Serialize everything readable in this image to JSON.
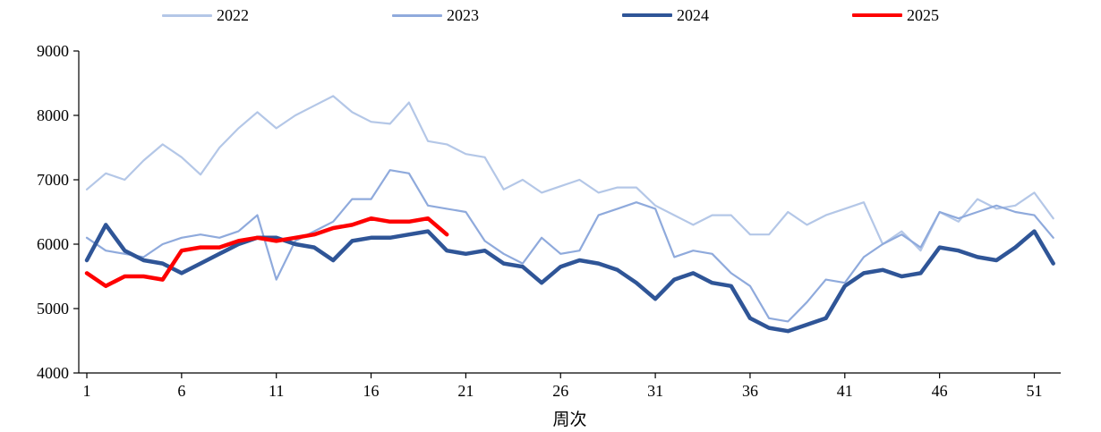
{
  "chart_data": {
    "type": "line",
    "title": "",
    "xlabel": "周次",
    "legend_position": "top",
    "grid": false,
    "xlim": [
      1,
      52
    ],
    "ylim": [
      4000,
      9000
    ],
    "x_ticks": [
      1,
      6,
      11,
      16,
      21,
      26,
      31,
      36,
      41,
      46,
      51
    ],
    "y_ticks": [
      4000,
      5000,
      6000,
      7000,
      8000,
      9000
    ],
    "axis_color": "#000000",
    "series": [
      {
        "name": "2022",
        "color": "#b4c7e7",
        "width": 2.2,
        "values": [
          6850,
          7100,
          7000,
          7300,
          7550,
          7350,
          7080,
          7500,
          7800,
          8050,
          7800,
          8000,
          8150,
          8300,
          8050,
          7900,
          7870,
          8200,
          7600,
          7550,
          7400,
          7350,
          6850,
          7000,
          6800,
          6900,
          7000,
          6800,
          6880,
          6880,
          6600,
          6450,
          6300,
          6450,
          6450,
          6150,
          6150,
          6500,
          6300,
          6450,
          6550,
          6650,
          6000,
          6200,
          5900,
          6500,
          6350,
          6700,
          6550,
          6600,
          6800,
          6400
        ]
      },
      {
        "name": "2023",
        "color": "#8faadc",
        "width": 2.2,
        "values": [
          6100,
          5900,
          5850,
          5800,
          6000,
          6100,
          6150,
          6100,
          6200,
          6450,
          5450,
          6050,
          6200,
          6350,
          6700,
          6700,
          7150,
          7100,
          6600,
          6550,
          6500,
          6050,
          5850,
          5700,
          6100,
          5850,
          5900,
          6450,
          6550,
          6650,
          6550,
          5800,
          5900,
          5850,
          5550,
          5350,
          4850,
          4800,
          5100,
          5450,
          5400,
          5800,
          6000,
          6150,
          5950,
          6500,
          6400,
          6500,
          6600,
          6500,
          6450,
          6100
        ]
      },
      {
        "name": "2024",
        "color": "#2f5597",
        "width": 4.5,
        "values": [
          5750,
          6300,
          5900,
          5750,
          5700,
          5550,
          5700,
          5850,
          6000,
          6100,
          6100,
          6000,
          5950,
          5750,
          6050,
          6100,
          6100,
          6150,
          6200,
          5900,
          5850,
          5900,
          5700,
          5650,
          5400,
          5650,
          5750,
          5700,
          5600,
          5400,
          5150,
          5450,
          5550,
          5400,
          5350,
          4850,
          4700,
          4650,
          4750,
          4850,
          5350,
          5550,
          5600,
          5500,
          5550,
          5950,
          5900,
          5800,
          5750,
          5950,
          6200,
          5700
        ]
      },
      {
        "name": "2025",
        "color": "#fe0000",
        "width": 4.5,
        "values": [
          5550,
          5350,
          5500,
          5500,
          5450,
          5900,
          5950,
          5950,
          6050,
          6100,
          6050,
          6100,
          6150,
          6250,
          6300,
          6400,
          6350,
          6350,
          6400,
          6150
        ]
      }
    ]
  }
}
